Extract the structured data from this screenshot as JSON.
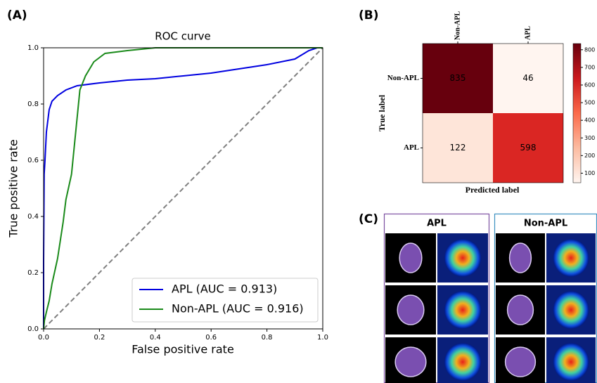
{
  "panel_labels": [
    "(A)",
    "(B)",
    "(C)"
  ],
  "chart_data": [
    {
      "type": "line",
      "title": "ROC curve",
      "xlabel": "False positive rate",
      "ylabel": "True positive rate",
      "xlim": [
        0,
        1
      ],
      "ylim": [
        0,
        1
      ],
      "xticks": [
        {
          "value": 0,
          "label": "0.0"
        },
        {
          "value": 0.2,
          "label": "0.2"
        },
        {
          "value": 0.4,
          "label": "0.4"
        },
        {
          "value": 0.6,
          "label": "0.6"
        },
        {
          "value": 0.8,
          "label": "0.8"
        },
        {
          "value": 1,
          "label": "1.0"
        }
      ],
      "yticks": [
        {
          "value": 0,
          "label": "0.0"
        },
        {
          "value": 0.2,
          "label": "0.2"
        },
        {
          "value": 0.4,
          "label": "0.4"
        },
        {
          "value": 0.6,
          "label": "0.6"
        },
        {
          "value": 0.8,
          "label": "0.8"
        },
        {
          "value": 1,
          "label": "1.0"
        }
      ],
      "legend": "lower right",
      "series": [
        {
          "name": "APL (AUC = 0.913)",
          "color": "#0000e0",
          "x": [
            0,
            0,
            0.002,
            0.005,
            0.01,
            0.02,
            0.03,
            0.05,
            0.08,
            0.12,
            0.2,
            0.3,
            0.4,
            0.5,
            0.6,
            0.7,
            0.8,
            0.9,
            0.95,
            0.98,
            1
          ],
          "values": [
            0,
            0.24,
            0.55,
            0.6,
            0.7,
            0.78,
            0.81,
            0.83,
            0.85,
            0.865,
            0.875,
            0.885,
            0.89,
            0.9,
            0.91,
            0.925,
            0.94,
            0.96,
            0.99,
            1,
            1
          ]
        },
        {
          "name": "Non-APL (AUC = 0.916)",
          "color": "#1a8a1a",
          "x": [
            0,
            0.003,
            0.01,
            0.02,
            0.03,
            0.05,
            0.07,
            0.08,
            0.1,
            0.11,
            0.12,
            0.13,
            0.15,
            0.18,
            0.22,
            0.3,
            0.4,
            1
          ],
          "values": [
            0,
            0.03,
            0.06,
            0.1,
            0.16,
            0.25,
            0.38,
            0.46,
            0.55,
            0.65,
            0.75,
            0.85,
            0.9,
            0.95,
            0.98,
            0.99,
            1,
            1
          ]
        }
      ]
    },
    {
      "type": "heatmap",
      "xlabel": "Predicted label",
      "ylabel": "True label",
      "x_categories": [
        "Non-APL",
        "APL"
      ],
      "y_categories": [
        "Non-APL",
        "APL"
      ],
      "z": [
        [
          835,
          46
        ],
        [
          122,
          598
        ]
      ],
      "colormap": "Reds",
      "colorbar_lim": [
        46,
        835
      ],
      "colorbar_ticks": [
        100,
        200,
        300,
        400,
        500,
        600,
        700,
        800
      ]
    }
  ],
  "image_panel": {
    "groups": [
      {
        "title": "APL",
        "color": "#7b4fa0"
      },
      {
        "title": "Non-APL",
        "color": "#3a8fc0"
      }
    ]
  }
}
